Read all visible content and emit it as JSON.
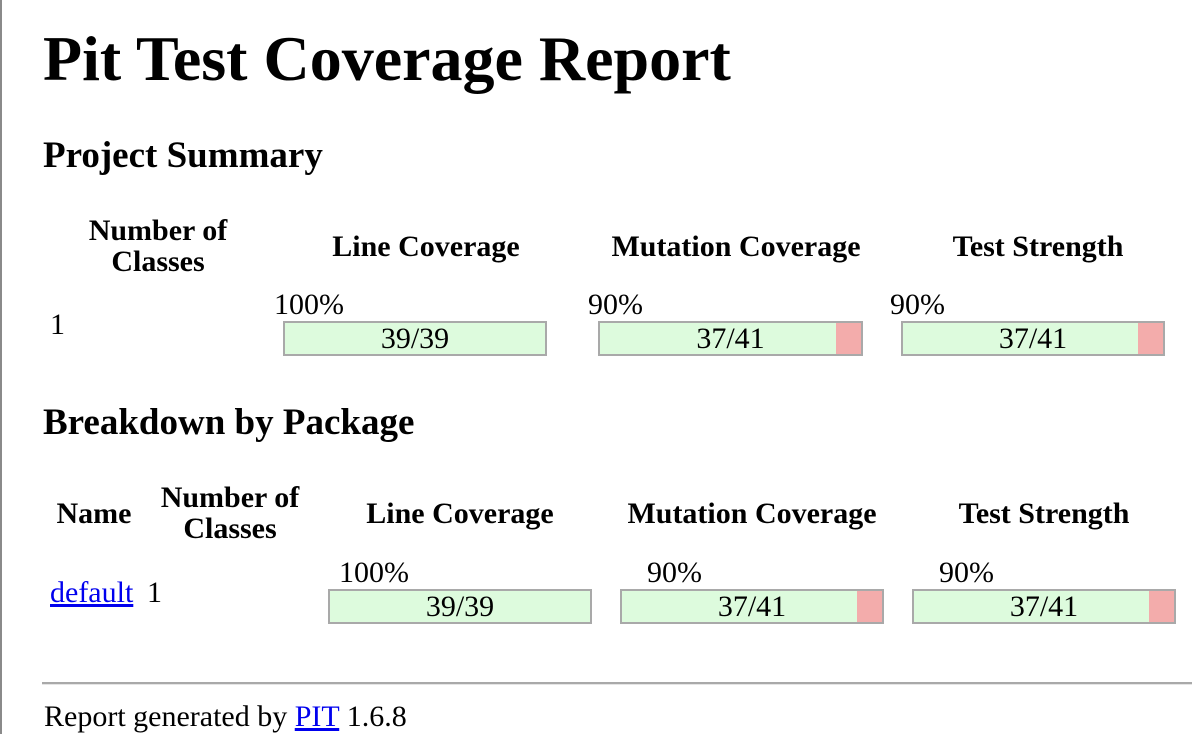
{
  "page": {
    "title": "Pit Test Coverage Report"
  },
  "project_summary": {
    "heading": "Project Summary",
    "headers": {
      "classes_line1": "Number of",
      "classes_line2": "Classes",
      "line_coverage": "Line Coverage",
      "mutation_coverage": "Mutation Coverage",
      "test_strength": "Test Strength"
    },
    "row": {
      "classes": "1",
      "line": {
        "percent": "100%",
        "ratio": "39/39",
        "fraction": 1.0
      },
      "mutation": {
        "percent": "90%",
        "ratio": "37/41",
        "fraction": 0.9024
      },
      "strength": {
        "percent": "90%",
        "ratio": "37/41",
        "fraction": 0.9024
      }
    }
  },
  "breakdown": {
    "heading": "Breakdown by Package",
    "headers": {
      "name": "Name",
      "classes_line1": "Number of",
      "classes_line2": "Classes",
      "line_coverage": "Line Coverage",
      "mutation_coverage": "Mutation Coverage",
      "test_strength": "Test Strength"
    },
    "rows": [
      {
        "name": "default",
        "classes": "1",
        "line": {
          "percent": "100%",
          "ratio": "39/39",
          "fraction": 1.0
        },
        "mutation": {
          "percent": "90%",
          "ratio": "37/41",
          "fraction": 0.9024
        },
        "strength": {
          "percent": "90%",
          "ratio": "37/41",
          "fraction": 0.9024
        }
      }
    ]
  },
  "footer": {
    "prefix": "Report generated by",
    "link_text": "PIT",
    "version": "1.6.8"
  },
  "colors": {
    "covered": "#ddfbdd",
    "missed": "#f3acab",
    "bar_border": "#a9a9a9",
    "link": "#0000ee"
  }
}
